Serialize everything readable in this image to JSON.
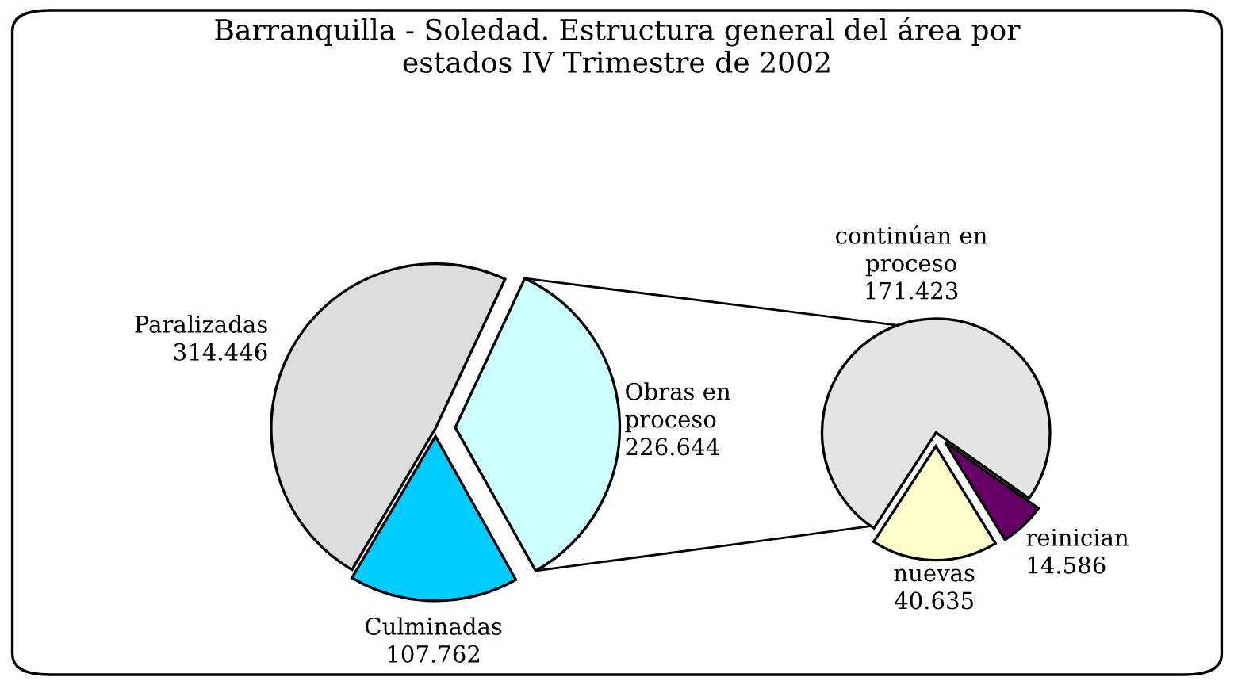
{
  "chart_data": [
    {
      "type": "pie",
      "title": "Barranquilla - Soledad. Estructura general del área por\nestados IV Trimestre de 2002",
      "categories": [
        "Obras en\nproceso",
        "Culminadas",
        "Paralizadas"
      ],
      "values": [
        226.644,
        107.762,
        314.446
      ],
      "value_labels": [
        "226.644",
        "107.762",
        "314.446"
      ],
      "colors": [
        "#ccffff",
        "#00ccff",
        "#dcdcdc"
      ]
    },
    {
      "type": "pie",
      "categories": [
        "continúan en\nproceso",
        "reinician",
        "nuevas"
      ],
      "values": [
        171.423,
        14.586,
        40.635
      ],
      "value_labels": [
        "171.423",
        "14.586",
        "40.635"
      ],
      "colors": [
        "#e4e4e4",
        "#660066",
        "#ffffcc"
      ]
    }
  ]
}
